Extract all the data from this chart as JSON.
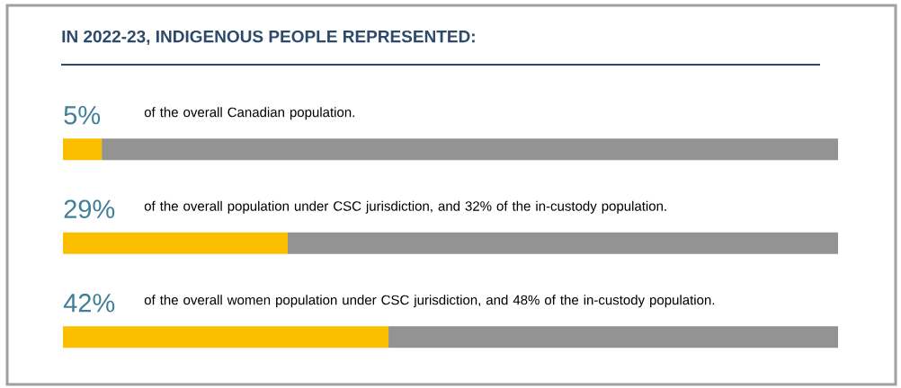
{
  "chart_data": {
    "type": "bar",
    "orientation": "horizontal",
    "stacked": true,
    "title": "IN 2022-23, INDIGENOUS PEOPLE REPRESENTED:",
    "categories": [
      "of the overall Canadian population.",
      "of the overall population under CSC jurisdiction, and 32% of the in-custody population.",
      "of the overall women population under CSC jurisdiction, and 48% of the in-custody population."
    ],
    "xlim": [
      0,
      100
    ],
    "tick_labels": "y",
    "series": [
      {
        "color": "#fbbf00",
        "values": [
          5,
          29,
          42
        ],
        "value_labels": [
          "5%",
          "29%",
          "42%"
        ]
      },
      {
        "color": "#939393",
        "values": [
          95,
          71,
          58
        ]
      }
    ]
  }
}
